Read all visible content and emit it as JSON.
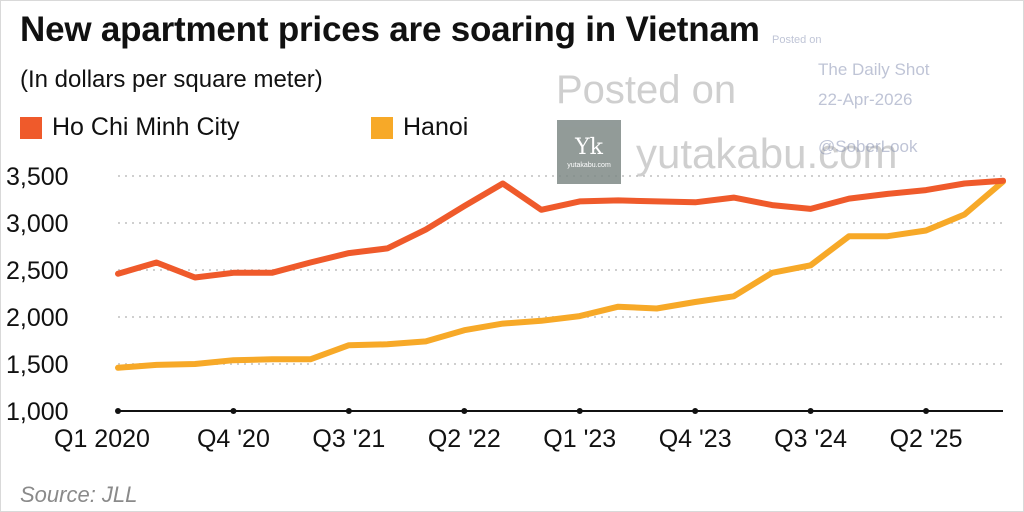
{
  "title": "New apartment prices are soaring in Vietnam",
  "subtitle": "(In dollars per square meter)",
  "source": "Source: JLL",
  "colors": {
    "hcmc": "#ef5a2b",
    "hanoi": "#f7a928",
    "grid": "#cfcfcf",
    "axis": "#111111"
  },
  "watermark": {
    "posted": "Posted on",
    "site": "yutakabu.com",
    "logo_mark": "Yk",
    "logo_domain": "yutakabu.com",
    "tiny": "Posted on",
    "daily": "The Daily Shot",
    "date": "22-Apr-2026",
    "handle": "@SoberLook"
  },
  "chart_data": {
    "type": "line",
    "title": "New apartment prices are soaring in Vietnam",
    "subtitle": "(In dollars per square meter)",
    "xlabel": "",
    "ylabel": "",
    "ylim": [
      1000,
      3500
    ],
    "yticks": [
      1000,
      1500,
      2000,
      2500,
      3000,
      3500
    ],
    "ytick_labels": [
      "1,000",
      "1,500",
      "2,000",
      "2,500",
      "3,000",
      "3,500"
    ],
    "grid": true,
    "legend_position": "top-left",
    "x": [
      "Q1 2020",
      "Q2 2020",
      "Q3 2020",
      "Q4 2020",
      "Q1 2021",
      "Q2 2021",
      "Q3 2021",
      "Q4 2021",
      "Q1 2022",
      "Q2 2022",
      "Q3 2022",
      "Q4 2022",
      "Q1 2023",
      "Q2 2023",
      "Q3 2023",
      "Q4 2023",
      "Q1 2024",
      "Q2 2024",
      "Q3 2024",
      "Q4 2024",
      "Q1 2025",
      "Q2 2025",
      "Q3 2025",
      "Q4 2025"
    ],
    "xtick_labels": [
      {
        "index": 0,
        "label": "Q1 2020"
      },
      {
        "index": 3,
        "label": "Q4 '20"
      },
      {
        "index": 6,
        "label": "Q3 '21"
      },
      {
        "index": 9,
        "label": "Q2 '22"
      },
      {
        "index": 12,
        "label": "Q1 '23"
      },
      {
        "index": 15,
        "label": "Q4 '23"
      },
      {
        "index": 18,
        "label": "Q3 '24"
      },
      {
        "index": 21,
        "label": "Q2 '25"
      }
    ],
    "series": [
      {
        "name": "Ho Chi Minh City",
        "color": "#ef5a2b",
        "values": [
          2460,
          2580,
          2420,
          2470,
          2470,
          2580,
          2680,
          2730,
          2930,
          3180,
          3420,
          3140,
          3230,
          3240,
          3230,
          3220,
          3270,
          3190,
          3150,
          3260,
          3310,
          3350,
          3420,
          3450
        ]
      },
      {
        "name": "Hanoi",
        "color": "#f7a928",
        "values": [
          1460,
          1490,
          1500,
          1540,
          1550,
          1550,
          1700,
          1710,
          1740,
          1860,
          1930,
          1960,
          2010,
          2110,
          2090,
          2160,
          2220,
          2470,
          2550,
          2860,
          2860,
          2920,
          3090,
          3440
        ]
      }
    ]
  }
}
